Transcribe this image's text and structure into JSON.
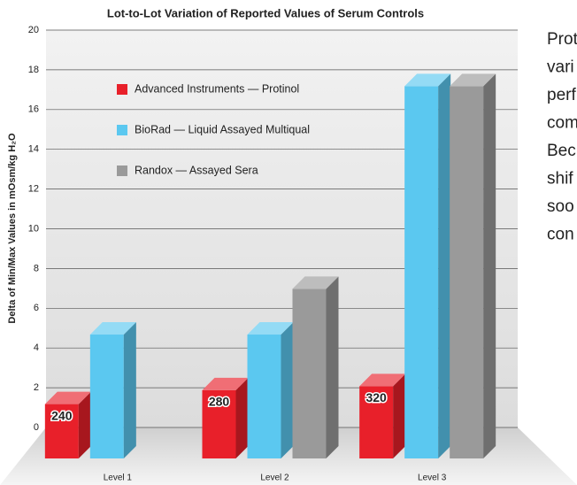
{
  "chart_data": {
    "type": "bar3d",
    "title": "Lot-to-Lot Variation of Reported Values of Serum Controls",
    "ylabel": "Delta of Min/Max Values in mOsm/kg H₂O",
    "categories": [
      "Level 1",
      "Level 2",
      "Level 3"
    ],
    "series": [
      {
        "name": "Advanced Instruments — Protinol",
        "color": "#e8202a",
        "values": [
          1.8,
          2.5,
          2.7
        ],
        "value_labels": [
          "240",
          "280",
          "320"
        ]
      },
      {
        "name": "BioRad — Liquid Assayed Multiqual",
        "color": "#5bc8f0",
        "values": [
          5.3,
          5.3,
          17.8
        ]
      },
      {
        "name": "Randox — Assayed Sera",
        "color": "#9a9a9a",
        "values": [
          null,
          7.6,
          17.8
        ]
      }
    ],
    "ylim": [
      0,
      20
    ],
    "yticks": [
      0,
      2,
      4,
      6,
      8,
      10,
      12,
      14,
      16,
      18,
      20
    ],
    "grid": true
  },
  "side_text": [
    "Prot",
    "vari",
    "perf",
    "com",
    "Bec",
    "shif",
    "soo",
    "con"
  ]
}
